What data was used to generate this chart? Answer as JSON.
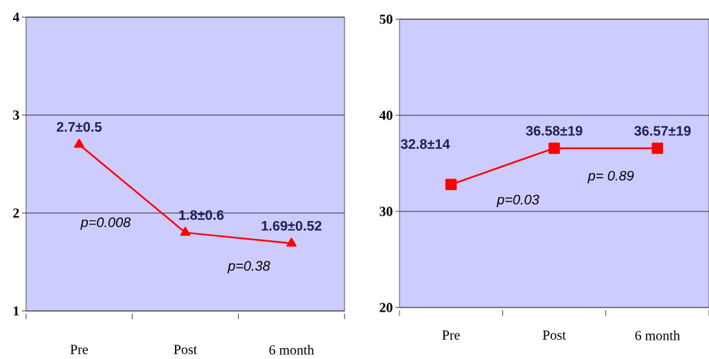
{
  "chart_data": [
    {
      "type": "line",
      "categories": [
        "Pre",
        "Post",
        "6 month"
      ],
      "ylim": [
        1,
        4
      ],
      "yticks": [
        1,
        2,
        3,
        4
      ],
      "grid": "y",
      "marker": "triangle",
      "line_style": "solid",
      "series": [
        {
          "color": "#ff0000",
          "values": [
            2.7,
            1.8,
            1.69
          ],
          "value_labels": [
            "2.7±0.5",
            "1.8±0.6",
            "1.69±0.52"
          ]
        }
      ],
      "annotations": [
        "p=0.008",
        "p=0.38"
      ]
    },
    {
      "type": "line",
      "categories": [
        "Pre",
        "Post",
        "6 month"
      ],
      "ylim": [
        20,
        50
      ],
      "yticks": [
        20,
        30,
        40,
        50
      ],
      "grid": "y",
      "marker": "square",
      "line_style": "solid",
      "series": [
        {
          "color": "#ff0000",
          "values": [
            32.8,
            36.58,
            36.57
          ],
          "value_labels": [
            "32.8±14",
            "36.58±19",
            "36.57±19"
          ]
        }
      ],
      "annotations": [
        "p=0.03",
        "p= 0.89"
      ]
    }
  ]
}
